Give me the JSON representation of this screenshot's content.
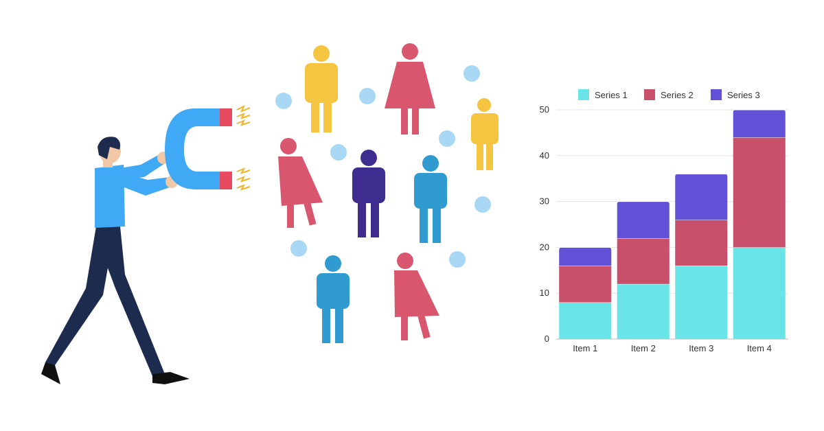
{
  "illustration": {
    "icons": [
      "businessman-icon",
      "magnet-icon",
      "person-icon",
      "user-avatar-icon",
      "spark-icon"
    ],
    "colors": {
      "shirt": "#3fa9f5",
      "pants": "#1d2b4f",
      "magnet_body": "#3fa9f5",
      "magnet_tip": "#e84a5f",
      "spark": "#f0b429",
      "yellow": "#f5c542",
      "rose": "#d9566f",
      "indigo": "#3e2d8f",
      "teal": "#2f9bd1",
      "avatar": "#a9d8f5"
    }
  },
  "chart_data": {
    "type": "bar",
    "stacked": true,
    "categories": [
      "Item 1",
      "Item 2",
      "Item 3",
      "Item 4"
    ],
    "series": [
      {
        "name": "Series 1",
        "values": [
          8,
          12,
          16,
          20
        ],
        "color": "#69e5e8"
      },
      {
        "name": "Series 2",
        "values": [
          8,
          10,
          10,
          24
        ],
        "color": "#c9506b"
      },
      {
        "name": "Series 3",
        "values": [
          4,
          8,
          10,
          6
        ],
        "color": "#6151d6"
      }
    ],
    "yticks": [
      "0",
      "10",
      "20",
      "30",
      "40",
      "50"
    ],
    "ylim": [
      0,
      50
    ],
    "grid": true,
    "legend_position": "top"
  }
}
